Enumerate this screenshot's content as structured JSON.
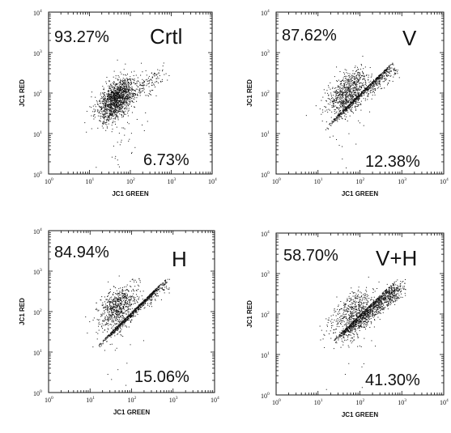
{
  "chart_data": [
    {
      "type": "scatter",
      "title": "Crtl",
      "xlabel": "JC1 GREEN",
      "ylabel": "JC1 RED",
      "xscale": "log",
      "yscale": "log",
      "xlim": [
        1,
        10000
      ],
      "ylim": [
        1,
        10000
      ],
      "tick_labels": [
        "10",
        "10",
        "10",
        "10",
        "10"
      ],
      "tick_exponents": [
        "0",
        "1",
        "2",
        "3",
        "4"
      ],
      "quadrant_values": {
        "upper_left": "93.27%",
        "lower_right": "6.73%"
      },
      "cluster": {
        "center": [
          45,
          75
        ],
        "spread_log": 0.28,
        "diagonal_tail": 0.15,
        "count": 1500,
        "outlier_count": 60
      },
      "grid": false
    },
    {
      "type": "scatter",
      "title": "V",
      "xlabel": "JC1 GREEN",
      "ylabel": "JC1 RED",
      "xscale": "log",
      "yscale": "log",
      "xlim": [
        1,
        10000
      ],
      "ylim": [
        1,
        10000
      ],
      "tick_labels": [
        "10",
        "10",
        "10",
        "10",
        "10"
      ],
      "tick_exponents": [
        "0",
        "1",
        "2",
        "3",
        "4"
      ],
      "quadrant_values": {
        "upper_left": "87.62%",
        "lower_right": "12.38%"
      },
      "cluster": {
        "center": [
          50,
          110
        ],
        "spread_log": 0.3,
        "diagonal_tail": 0.5,
        "count": 1500,
        "outlier_count": 25
      },
      "grid": false
    },
    {
      "type": "scatter",
      "title": "H",
      "xlabel": "JC1 GREEN",
      "ylabel": "JC1 RED",
      "xscale": "log",
      "yscale": "log",
      "xlim": [
        1,
        10000
      ],
      "ylim": [
        1,
        10000
      ],
      "tick_labels": [
        "10",
        "10",
        "10",
        "10",
        "10"
      ],
      "tick_exponents": [
        "0",
        "1",
        "2",
        "3",
        "4"
      ],
      "quadrant_values": {
        "upper_left": "84.94%",
        "lower_right": "15.06%"
      },
      "cluster": {
        "center": [
          45,
          130
        ],
        "spread_log": 0.3,
        "diagonal_tail": 0.55,
        "count": 1500,
        "outlier_count": 25
      },
      "grid": false
    },
    {
      "type": "scatter",
      "title": "V+H",
      "xlabel": "JC1 GREEN",
      "ylabel": "JC1 RED",
      "xscale": "log",
      "yscale": "log",
      "xlim": [
        1,
        10000
      ],
      "ylim": [
        1,
        10000
      ],
      "tick_labels": [
        "10",
        "10",
        "10",
        "10",
        "10"
      ],
      "tick_exponents": [
        "0",
        "1",
        "2",
        "3",
        "4"
      ],
      "quadrant_values": {
        "upper_left": "58.70%",
        "lower_right": "41.30%"
      },
      "cluster": {
        "center": [
          70,
          110
        ],
        "spread_log": 0.33,
        "diagonal_tail": 0.7,
        "count": 1700,
        "outlier_count": 30
      },
      "grid": false
    }
  ]
}
